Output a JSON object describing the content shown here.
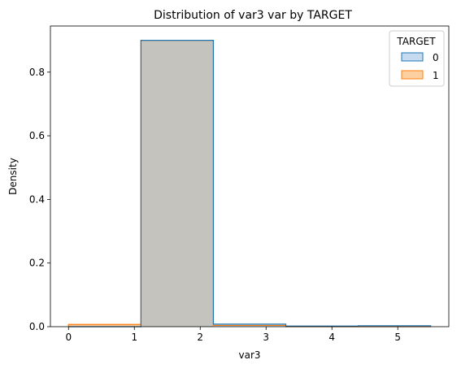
{
  "chart_data": {
    "type": "histogram",
    "title": "Distribution of var3 var by TARGET",
    "xlabel": "var3",
    "ylabel": "Density",
    "xlim": [
      -0.275,
      5.775
    ],
    "ylim": [
      0,
      0.945
    ],
    "xticks": [
      0,
      1,
      2,
      3,
      4,
      5
    ],
    "yticks": [
      0.0,
      0.2,
      0.4,
      0.6,
      0.8
    ],
    "bin_edges": [
      0,
      1.1,
      2.2,
      3.3,
      4.4,
      5.5
    ],
    "legend": {
      "title": "TARGET",
      "position": "top-right"
    },
    "series": [
      {
        "name": "0",
        "color": "#1f77b4",
        "fill": "#c6dbef",
        "density": [
          0.0,
          0.9,
          0.008,
          0.002,
          0.003
        ]
      },
      {
        "name": "1",
        "color": "#ff7f0e",
        "fill": "#fdd0a2",
        "density": [
          0.007,
          0.9,
          0.004,
          0.0,
          0.0
        ]
      }
    ],
    "overlap_fill": "#c4c3bd"
  }
}
